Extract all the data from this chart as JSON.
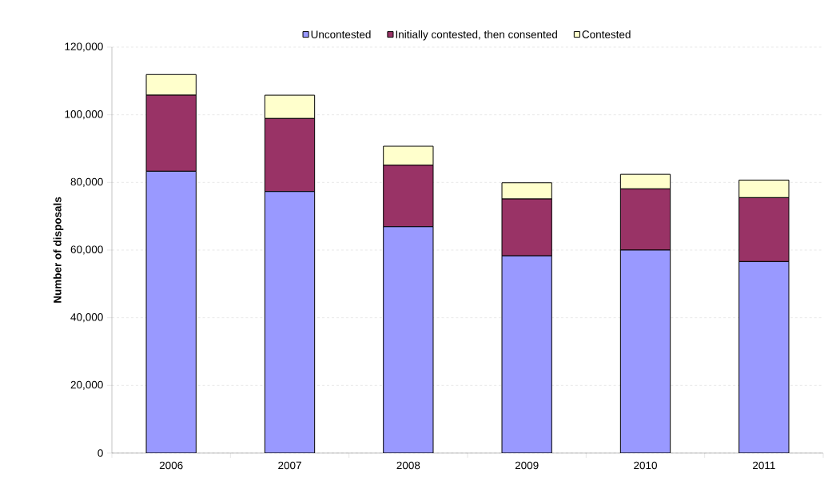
{
  "chart_data": {
    "type": "bar",
    "stacked": true,
    "ylabel": "Number of disposals",
    "categories": [
      "2006",
      "2007",
      "2008",
      "2009",
      "2010",
      "2011"
    ],
    "series": [
      {
        "name": "Uncontested",
        "color": "#9999ff",
        "values": [
          83300,
          77300,
          66900,
          58300,
          60000,
          56600
        ]
      },
      {
        "name": "Initially contested, then consented",
        "color": "#993366",
        "values": [
          22500,
          21600,
          18200,
          16800,
          18100,
          18900
        ]
      },
      {
        "name": "Contested",
        "color": "#ffffcc",
        "values": [
          6100,
          6900,
          5600,
          4800,
          4300,
          5200
        ]
      }
    ],
    "ylim": [
      0,
      120000
    ],
    "yticks": [
      {
        "value": 0,
        "label": "0"
      },
      {
        "value": 20000,
        "label": "20,000"
      },
      {
        "value": 40000,
        "label": "40,000"
      },
      {
        "value": 60000,
        "label": "60,000"
      },
      {
        "value": 80000,
        "label": "80,000"
      },
      {
        "value": 100000,
        "label": "100,000"
      },
      {
        "value": 120000,
        "label": "120,000"
      }
    ],
    "grid": "y",
    "legend": "top"
  }
}
